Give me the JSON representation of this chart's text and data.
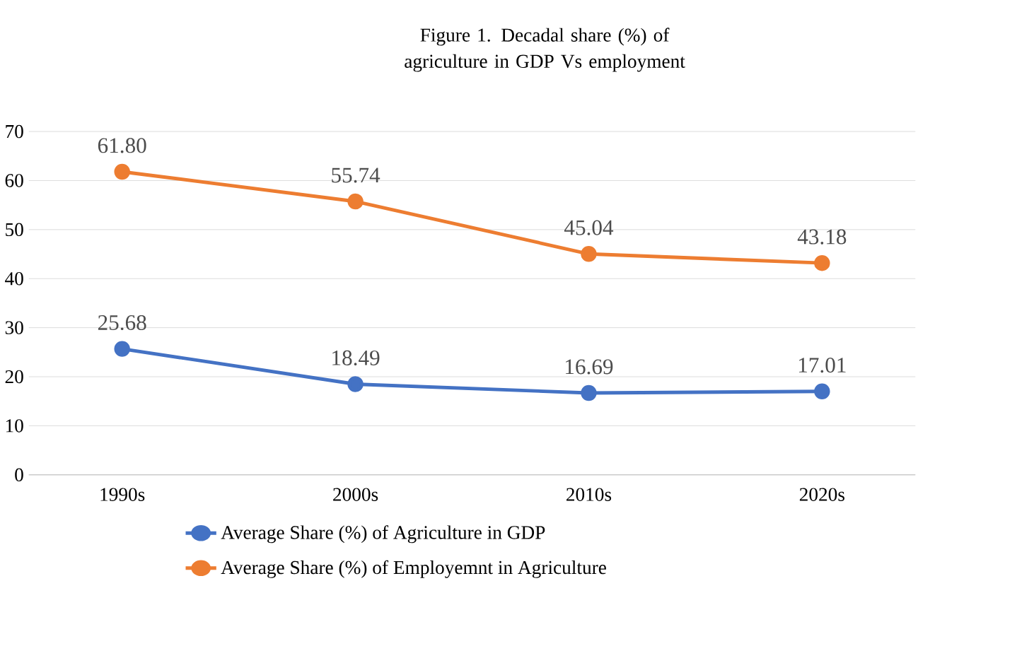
{
  "chart_data": {
    "type": "line",
    "title": "Figure 1. Decadal share (%) of agriculture in GDP Vs employment",
    "categories": [
      "1990s",
      "2000s",
      "2010s",
      "2020s"
    ],
    "series": [
      {
        "name": "Average Share (%) of Agriculture in GDP",
        "color": "#4472c4",
        "values": [
          25.68,
          18.49,
          16.69,
          17.01
        ],
        "value_labels": [
          "25.68",
          "18.49",
          "16.69",
          "17.01"
        ]
      },
      {
        "name": "Average Share (%) of Employemnt in Agriculture",
        "color": "#ed7d31",
        "values": [
          61.8,
          55.74,
          45.04,
          43.18
        ],
        "value_labels": [
          "61.80",
          "55.74",
          "45.04",
          "43.18"
        ]
      }
    ],
    "ylim": [
      0,
      70
    ],
    "yticks": [
      0,
      10,
      20,
      30,
      40,
      50,
      60,
      70
    ],
    "grid": "y",
    "legend": "bottom",
    "marker": "circle",
    "line_style": "solid"
  }
}
